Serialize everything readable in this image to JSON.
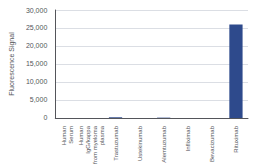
{
  "chart_data": {
    "type": "bar",
    "categories": [
      "Human\nSerum",
      "Human\nIgG/kappa\nfrom myeloma\nplasma",
      "Trastuzumab",
      "Ustekinumab",
      "Alemtuzumab",
      "Infliximab",
      "Bevacizumab",
      "Rituximab"
    ],
    "values": [
      0,
      0,
      200,
      0,
      100,
      0,
      0,
      26000
    ],
    "color": "#2e4a8c",
    "ylabel": "Fluorescence Signal",
    "ylim": [
      0,
      30000
    ],
    "yticks": [
      0,
      {
        "value": 5000,
        "label": "5,000"
      },
      {
        "value": 10000,
        "label": "10,000"
      },
      {
        "value": 15000,
        "label": "15,000"
      },
      {
        "value": 20000,
        "label": "20,000"
      },
      {
        "value": 25000,
        "label": "25,000"
      },
      {
        "value": 30000,
        "label": "30,000"
      }
    ],
    "grid": true
  }
}
